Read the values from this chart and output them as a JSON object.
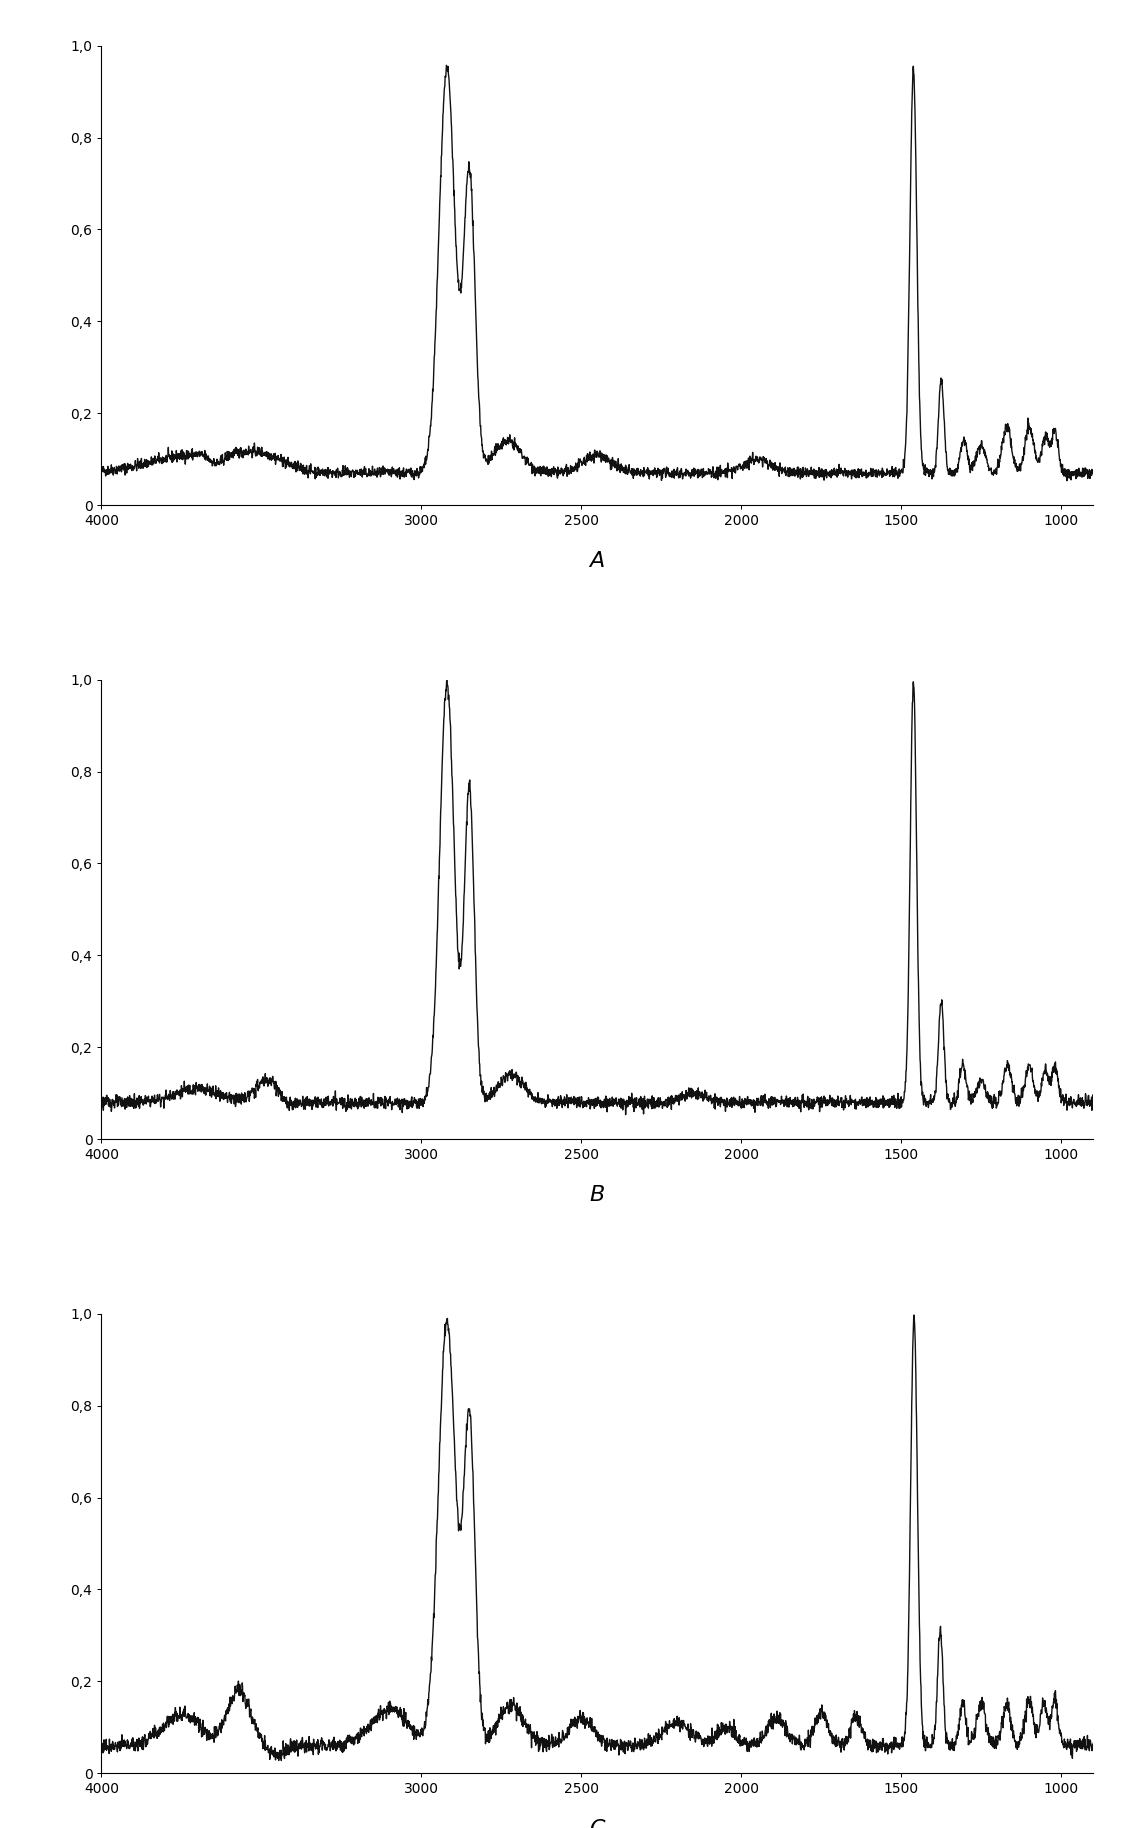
{
  "panels": [
    "A",
    "B",
    "C"
  ],
  "xlim": [
    4000,
    900
  ],
  "ylim": [
    0,
    1.0
  ],
  "yticks": [
    0.0,
    0.2,
    0.4,
    0.6,
    0.8,
    1.0
  ],
  "ytick_labels_A": [
    "0",
    "0,2",
    "0,4",
    "0,6",
    "0,8",
    "1,0"
  ],
  "ytick_labels_BC": [
    "0",
    "0,2",
    "0,4",
    "0,6",
    "0,8",
    "1,0"
  ],
  "xticks": [
    4000,
    3000,
    2500,
    2000,
    1500,
    1000
  ],
  "xtick_labels": [
    "4000",
    "3000",
    "2500",
    "2000",
    "1500",
    "1000"
  ],
  "background_color": "#ffffff",
  "line_color": "#111111",
  "line_width": 1.0,
  "panel_label_fontsize": 16,
  "axis_fontsize": 10
}
